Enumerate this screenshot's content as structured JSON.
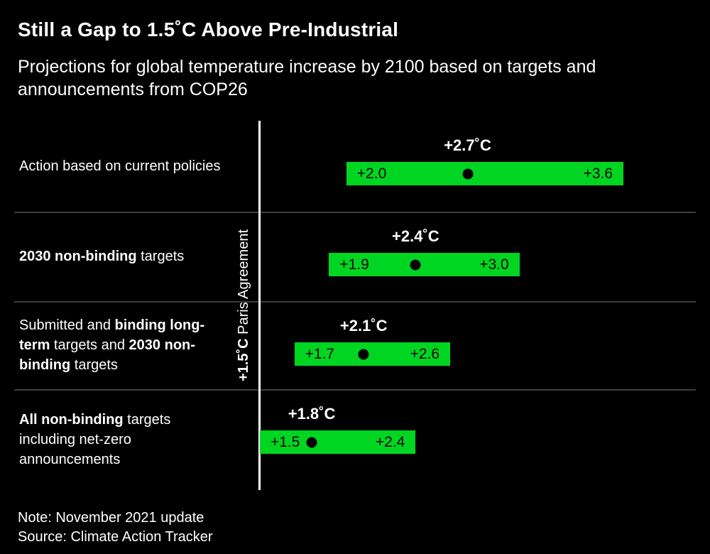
{
  "title": "Still a Gap to 1.5˚C Above Pre-Industrial",
  "subtitle": "Projections for global temperature increase by 2100 based on targets and announcements from COP26",
  "note": "Note: November 2021 update",
  "source": "Source: Climate Action Tracker",
  "colors": {
    "background": "#000000",
    "bar": "#00d621",
    "text": "#ffffff",
    "bar_text": "#000000",
    "divider": "#3d3d3d",
    "reference_line": "#ffffff"
  },
  "reference": {
    "label_bold": "+1.5˚C",
    "label_regular": " Paris Agreement"
  },
  "chart_data": {
    "type": "range-bar",
    "title": "Still a Gap to 1.5˚C Above Pre-Industrial",
    "subtitle": "Projections for global temperature increase by 2100 based on targets and announcements from COP26",
    "unit": "˚C above pre-industrial by 2100",
    "xlim": [
      0,
      4.1
    ],
    "grid": false,
    "reference_line": {
      "value": 1.5,
      "label": "+1.5˚C Paris Agreement"
    },
    "rows": [
      {
        "label_segments": [
          {
            "text": "Action based on current policies",
            "bold": false
          }
        ],
        "min": 2.0,
        "mid": 2.7,
        "max": 3.6,
        "min_label": "+2.0",
        "mid_label": "+2.7˚C",
        "max_label": "+3.6"
      },
      {
        "label_segments": [
          {
            "text": "2030 non-binding",
            "bold": true
          },
          {
            "text": " targets",
            "bold": false
          }
        ],
        "min": 1.9,
        "mid": 2.4,
        "max": 3.0,
        "min_label": "+1.9",
        "mid_label": "+2.4˚C",
        "max_label": "+3.0"
      },
      {
        "label_segments": [
          {
            "text": "Submitted and ",
            "bold": false
          },
          {
            "text": "binding long-term",
            "bold": true
          },
          {
            "text": " targets and ",
            "bold": false
          },
          {
            "text": "2030 non-binding",
            "bold": true
          },
          {
            "text": " targets",
            "bold": false
          }
        ],
        "min": 1.7,
        "mid": 2.1,
        "max": 2.6,
        "min_label": "+1.7",
        "mid_label": "+2.1˚C",
        "max_label": "+2.6"
      },
      {
        "label_segments": [
          {
            "text": "All non-binding",
            "bold": true
          },
          {
            "text": " targets including net-zero announcements",
            "bold": false
          }
        ],
        "min": 1.5,
        "mid": 1.8,
        "max": 2.4,
        "min_label": "+1.5",
        "mid_label": "+1.8˚C",
        "max_label": "+2.4"
      }
    ],
    "row_bands": {
      "tops": [
        0,
        128,
        254,
        378
      ],
      "heights": [
        128,
        126,
        124,
        142
      ]
    }
  }
}
